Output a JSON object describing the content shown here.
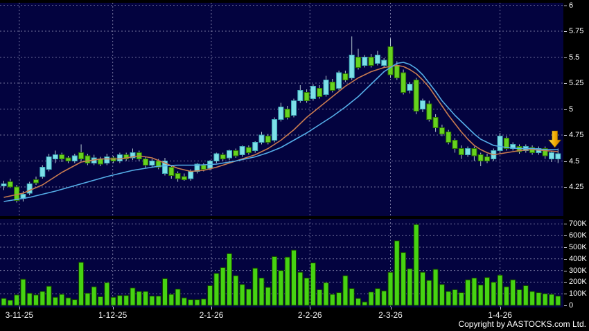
{
  "meta": {
    "copyright": "Copyright by AASTOCKS.com Ltd."
  },
  "colors": {
    "background": "#000000",
    "panel": "#03033F",
    "grid": "#9A9ABE",
    "candle_cyan": "#7CE0E8",
    "candle_cyan_border": "#3FAAB8",
    "candle_green": "#66D21E",
    "candle_green_border": "#2E7700",
    "wick": "#B4C8D0",
    "volume_bar": "#46D312",
    "volume_bar_border": "#123F00",
    "ma_fast": "#C97B50",
    "ma_slow": "#55AEE8",
    "text": "#FFFFFF",
    "arrow_light": "#FFE050",
    "arrow_mid": "#F0A800",
    "arrow_dark": "#C87800"
  },
  "price_axis": {
    "labels": [
      "6",
      "5.75",
      "5.5",
      "5.25",
      "5",
      "4.75",
      "4.5",
      "4.25"
    ],
    "values": [
      6,
      5.75,
      5.5,
      5.25,
      5,
      4.75,
      4.5,
      4.25
    ]
  },
  "volume_axis": {
    "labels": [
      "700K",
      "600K",
      "500K",
      "400K",
      "300K",
      "200K",
      "100K",
      "0"
    ],
    "values": [
      700,
      600,
      500,
      400,
      300,
      200,
      100,
      0
    ]
  },
  "chart_data": {
    "type": "candlestick+volume",
    "title": "",
    "x_ticks": [
      {
        "label": "3-11-25",
        "index": 2.4
      },
      {
        "label": "1-12-25",
        "index": 16.9
      },
      {
        "label": "2-1-26",
        "index": 32.2
      },
      {
        "label": "2-2-26",
        "index": 47.5
      },
      {
        "label": "2-3-26",
        "index": 60.0
      },
      {
        "label": "1-4-26",
        "index": 77.0
      }
    ],
    "price_ylim": [
      3.98,
      6.03
    ],
    "price_gridlines": [
      4.25,
      4.5,
      4.75,
      5,
      5.25,
      5.5,
      5.75,
      6
    ],
    "volume_ylim_k": [
      0,
      745
    ],
    "volume_gridlines_k": [
      100,
      200,
      300,
      400,
      500,
      600,
      700
    ],
    "candles": [
      [
        4.26,
        4.31,
        4.22,
        4.28,
        "c"
      ],
      [
        4.3,
        4.33,
        4.24,
        4.25,
        "g"
      ],
      [
        4.25,
        4.27,
        4.1,
        4.12,
        "g"
      ],
      [
        4.14,
        4.21,
        4.11,
        4.18,
        "c"
      ],
      [
        4.19,
        4.3,
        4.17,
        4.28,
        "c"
      ],
      [
        4.32,
        4.35,
        4.27,
        4.29,
        "g"
      ],
      [
        4.35,
        4.46,
        4.33,
        4.44,
        "c"
      ],
      [
        4.42,
        4.57,
        4.4,
        4.54,
        "c"
      ],
      [
        4.52,
        4.6,
        4.48,
        4.56,
        "c"
      ],
      [
        4.56,
        4.58,
        4.49,
        4.52,
        "g"
      ],
      [
        4.53,
        4.55,
        4.48,
        4.5,
        "g"
      ],
      [
        4.5,
        4.57,
        4.48,
        4.55,
        "c"
      ],
      [
        4.58,
        4.66,
        4.5,
        4.52,
        "g"
      ],
      [
        4.55,
        4.57,
        4.46,
        4.48,
        "g"
      ],
      [
        4.48,
        4.56,
        4.46,
        4.53,
        "c"
      ],
      [
        4.52,
        4.54,
        4.45,
        4.47,
        "g"
      ],
      [
        4.48,
        4.57,
        4.46,
        4.54,
        "c"
      ],
      [
        4.53,
        4.55,
        4.48,
        4.5,
        "g"
      ],
      [
        4.5,
        4.58,
        4.48,
        4.56,
        "c"
      ],
      [
        4.56,
        4.58,
        4.5,
        4.52,
        "g"
      ],
      [
        4.53,
        4.62,
        4.51,
        4.58,
        "c"
      ],
      [
        4.58,
        4.6,
        4.5,
        4.52,
        "g"
      ],
      [
        4.52,
        4.54,
        4.43,
        4.46,
        "g"
      ],
      [
        4.46,
        4.52,
        4.44,
        4.5,
        "c"
      ],
      [
        4.5,
        4.52,
        4.42,
        4.44,
        "g"
      ],
      [
        4.38,
        4.53,
        4.36,
        4.5,
        "c"
      ],
      [
        4.44,
        4.46,
        4.33,
        4.36,
        "g"
      ],
      [
        4.38,
        4.4,
        4.3,
        4.33,
        "g"
      ],
      [
        4.35,
        4.38,
        4.31,
        4.32,
        "g"
      ],
      [
        4.33,
        4.42,
        4.31,
        4.4,
        "c"
      ],
      [
        4.4,
        4.48,
        4.38,
        4.47,
        "c"
      ],
      [
        4.46,
        4.48,
        4.4,
        4.42,
        "g"
      ],
      [
        4.43,
        4.51,
        4.41,
        4.5,
        "c"
      ],
      [
        4.5,
        4.58,
        4.48,
        4.57,
        "c"
      ],
      [
        4.56,
        4.58,
        4.5,
        4.52,
        "g"
      ],
      [
        4.53,
        4.61,
        4.51,
        4.6,
        "c"
      ],
      [
        4.6,
        4.62,
        4.53,
        4.55,
        "g"
      ],
      [
        4.56,
        4.65,
        4.54,
        4.64,
        "c"
      ],
      [
        4.63,
        4.65,
        4.56,
        4.58,
        "g"
      ],
      [
        4.6,
        4.69,
        4.58,
        4.68,
        "c"
      ],
      [
        4.68,
        4.78,
        4.66,
        4.75,
        "c"
      ],
      [
        4.74,
        4.76,
        4.66,
        4.68,
        "g"
      ],
      [
        4.7,
        4.92,
        4.68,
        4.9,
        "c"
      ],
      [
        4.9,
        5.06,
        4.88,
        5.02,
        "c"
      ],
      [
        5.0,
        5.03,
        4.9,
        4.92,
        "g"
      ],
      [
        4.94,
        5.1,
        4.92,
        5.08,
        "c"
      ],
      [
        5.08,
        5.23,
        5.06,
        5.18,
        "c"
      ],
      [
        5.16,
        5.19,
        5.06,
        5.08,
        "g"
      ],
      [
        5.1,
        5.24,
        5.08,
        5.22,
        "c"
      ],
      [
        5.2,
        5.23,
        5.1,
        5.12,
        "g"
      ],
      [
        5.14,
        5.32,
        5.12,
        5.28,
        "c"
      ],
      [
        5.26,
        5.29,
        5.16,
        5.18,
        "g"
      ],
      [
        5.2,
        5.37,
        5.18,
        5.35,
        "c"
      ],
      [
        5.34,
        5.37,
        5.26,
        5.28,
        "g"
      ],
      [
        5.3,
        5.7,
        5.28,
        5.52,
        "c"
      ],
      [
        5.5,
        5.58,
        5.38,
        5.4,
        "g"
      ],
      [
        5.42,
        5.52,
        5.4,
        5.5,
        "c"
      ],
      [
        5.5,
        5.53,
        5.4,
        5.42,
        "g"
      ],
      [
        5.44,
        5.56,
        5.42,
        5.52,
        "c"
      ],
      [
        5.42,
        5.49,
        5.4,
        5.47,
        "c"
      ],
      [
        5.6,
        5.68,
        5.3,
        5.33,
        "g"
      ],
      [
        5.42,
        5.46,
        5.28,
        5.3,
        "g"
      ],
      [
        5.35,
        5.38,
        5.14,
        5.16,
        "g"
      ],
      [
        5.18,
        5.26,
        5.15,
        5.24,
        "c"
      ],
      [
        5.28,
        5.3,
        4.95,
        4.98,
        "g"
      ],
      [
        5.0,
        5.1,
        4.97,
        5.08,
        "c"
      ],
      [
        5.05,
        5.08,
        4.88,
        4.9,
        "g"
      ],
      [
        4.92,
        4.95,
        4.78,
        4.82,
        "g"
      ],
      [
        4.82,
        4.85,
        4.74,
        4.76,
        "g"
      ],
      [
        4.78,
        4.8,
        4.66,
        4.68,
        "g"
      ],
      [
        4.7,
        4.72,
        4.58,
        4.62,
        "g"
      ],
      [
        4.62,
        4.65,
        4.52,
        4.56,
        "g"
      ],
      [
        4.56,
        4.64,
        4.54,
        4.62,
        "c"
      ],
      [
        4.62,
        4.64,
        4.5,
        4.55,
        "g"
      ],
      [
        4.56,
        4.58,
        4.45,
        4.5,
        "g"
      ],
      [
        4.54,
        4.57,
        4.48,
        4.5,
        "g"
      ],
      [
        4.52,
        4.62,
        4.5,
        4.6,
        "c"
      ],
      [
        4.6,
        4.77,
        4.57,
        4.74,
        "c"
      ],
      [
        4.72,
        4.74,
        4.6,
        4.62,
        "g"
      ],
      [
        4.62,
        4.68,
        4.6,
        4.66,
        "c"
      ],
      [
        4.64,
        4.66,
        4.57,
        4.59,
        "g"
      ],
      [
        4.6,
        4.66,
        4.58,
        4.64,
        "c"
      ],
      [
        4.63,
        4.65,
        4.56,
        4.58,
        "g"
      ],
      [
        4.58,
        4.64,
        4.56,
        4.62,
        "c"
      ],
      [
        4.62,
        4.64,
        4.52,
        4.55,
        "g"
      ],
      [
        4.52,
        4.6,
        4.49,
        4.58,
        "c"
      ],
      [
        4.52,
        4.62,
        4.48,
        4.57,
        "c"
      ]
    ],
    "volumes_k": [
      60,
      45,
      90,
      225,
      105,
      90,
      120,
      165,
      70,
      95,
      65,
      50,
      370,
      105,
      160,
      75,
      195,
      70,
      85,
      85,
      150,
      120,
      120,
      80,
      80,
      230,
      95,
      140,
      65,
      50,
      50,
      55,
      170,
      275,
      325,
      445,
      255,
      180,
      140,
      320,
      235,
      155,
      420,
      300,
      415,
      475,
      285,
      235,
      365,
      135,
      195,
      95,
      110,
      255,
      145,
      60,
      30,
      115,
      145,
      125,
      285,
      555,
      455,
      315,
      695,
      285,
      215,
      310,
      180,
      120,
      135,
      110,
      220,
      235,
      175,
      240,
      200,
      260,
      160,
      220,
      135,
      170,
      120,
      110,
      100,
      95,
      80
    ],
    "series": [
      {
        "name": "ma-fast-orange",
        "type": "line",
        "points": [
          [
            0,
            4.15
          ],
          [
            3,
            4.19
          ],
          [
            6,
            4.27
          ],
          [
            9,
            4.39
          ],
          [
            12,
            4.49
          ],
          [
            15,
            4.52
          ],
          [
            18,
            4.52
          ],
          [
            21,
            4.55
          ],
          [
            23,
            4.53
          ],
          [
            25,
            4.48
          ],
          [
            27,
            4.43
          ],
          [
            29,
            4.4
          ],
          [
            31,
            4.41
          ],
          [
            33,
            4.44
          ],
          [
            35,
            4.48
          ],
          [
            37,
            4.52
          ],
          [
            39,
            4.56
          ],
          [
            41,
            4.62
          ],
          [
            43,
            4.7
          ],
          [
            45,
            4.8
          ],
          [
            47,
            4.92
          ],
          [
            49,
            5.02
          ],
          [
            51,
            5.12
          ],
          [
            53,
            5.22
          ],
          [
            55,
            5.3
          ],
          [
            57,
            5.36
          ],
          [
            59,
            5.4
          ],
          [
            61,
            5.42
          ],
          [
            62,
            5.41
          ],
          [
            63,
            5.38
          ],
          [
            64,
            5.34
          ],
          [
            65,
            5.28
          ],
          [
            66,
            5.21
          ],
          [
            67,
            5.12
          ],
          [
            68,
            5.03
          ],
          [
            69,
            4.94
          ],
          [
            70,
            4.86
          ],
          [
            71,
            4.78
          ],
          [
            72,
            4.71
          ],
          [
            73,
            4.65
          ],
          [
            74,
            4.61
          ],
          [
            75,
            4.58
          ],
          [
            76,
            4.56
          ],
          [
            77,
            4.57
          ],
          [
            78,
            4.58
          ],
          [
            80,
            4.6
          ],
          [
            82,
            4.61
          ],
          [
            84,
            4.6
          ],
          [
            86,
            4.59
          ]
        ]
      },
      {
        "name": "ma-slow-blue",
        "type": "line",
        "points": [
          [
            0,
            4.11
          ],
          [
            4,
            4.15
          ],
          [
            8,
            4.21
          ],
          [
            12,
            4.28
          ],
          [
            16,
            4.35
          ],
          [
            20,
            4.41
          ],
          [
            24,
            4.45
          ],
          [
            27,
            4.46
          ],
          [
            30,
            4.46
          ],
          [
            33,
            4.47
          ],
          [
            36,
            4.5
          ],
          [
            39,
            4.54
          ],
          [
            41,
            4.58
          ],
          [
            43,
            4.63
          ],
          [
            45,
            4.7
          ],
          [
            47,
            4.77
          ],
          [
            49,
            4.85
          ],
          [
            51,
            4.93
          ],
          [
            53,
            5.02
          ],
          [
            55,
            5.12
          ],
          [
            57,
            5.24
          ],
          [
            59,
            5.36
          ],
          [
            61,
            5.44
          ],
          [
            62,
            5.45
          ],
          [
            63,
            5.43
          ],
          [
            64,
            5.39
          ],
          [
            65,
            5.33
          ],
          [
            66,
            5.25
          ],
          [
            67,
            5.17
          ],
          [
            68,
            5.08
          ],
          [
            69,
            5.01
          ],
          [
            70,
            4.94
          ],
          [
            71,
            4.88
          ],
          [
            72,
            4.82
          ],
          [
            73,
            4.76
          ],
          [
            74,
            4.71
          ],
          [
            75,
            4.68
          ],
          [
            76,
            4.65
          ],
          [
            77,
            4.64
          ],
          [
            78,
            4.63
          ],
          [
            80,
            4.62
          ],
          [
            82,
            4.62
          ],
          [
            84,
            4.61
          ],
          [
            86,
            4.61
          ]
        ]
      }
    ],
    "annotation": {
      "type": "down-arrow",
      "x_index": 85.5,
      "top_price": 4.79,
      "tip_price": 4.63
    }
  }
}
